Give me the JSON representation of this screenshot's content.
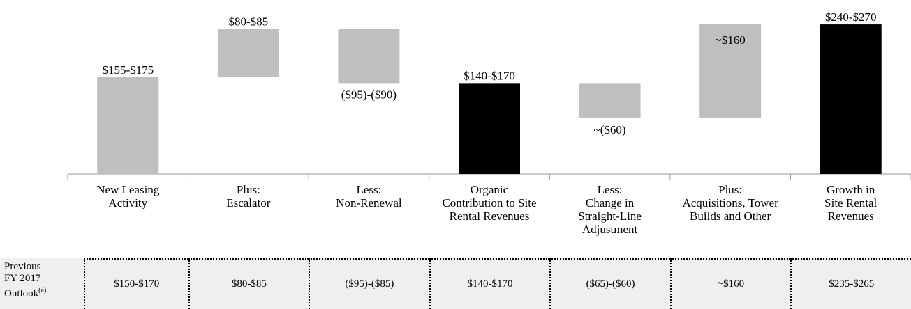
{
  "chart_data": {
    "type": "waterfall",
    "categories": [
      "New Leasing\nActivity",
      "Plus:\nEscalator",
      "Less:\nNon-Renewal",
      "Organic\nContribution to Site\nRental Revenues",
      "Less:\nChange in\nStraight-Line\nAdjustment",
      "Plus:\nAcquisitions, Tower\nBuilds and Other",
      "Growth in\nSite Rental\nRevenues"
    ],
    "values": [
      165,
      82.5,
      -92.5,
      155,
      -60,
      160,
      255
    ],
    "value_labels": [
      "$155-$175",
      "$80-$85",
      "($95)-($90)",
      "$140-$170",
      "~($60)",
      "~$160",
      "$240-$270"
    ],
    "is_total": [
      false,
      false,
      false,
      true,
      false,
      false,
      true
    ],
    "colors": [
      "#bfbfbf",
      "#bfbfbf",
      "#bfbfbf",
      "#000000",
      "#bfbfbf",
      "#bfbfbf",
      "#000000"
    ],
    "ylim": [
      0,
      280
    ]
  },
  "outlook_table": {
    "row_header": "Previous\nFY 2017\nOutlook",
    "row_header_note": "(a)",
    "values": [
      "$150-$170",
      "$80-$85",
      "($95)-($85)",
      "$140-$170",
      "($65)-($60)",
      "~$160",
      "$235-$265"
    ]
  }
}
